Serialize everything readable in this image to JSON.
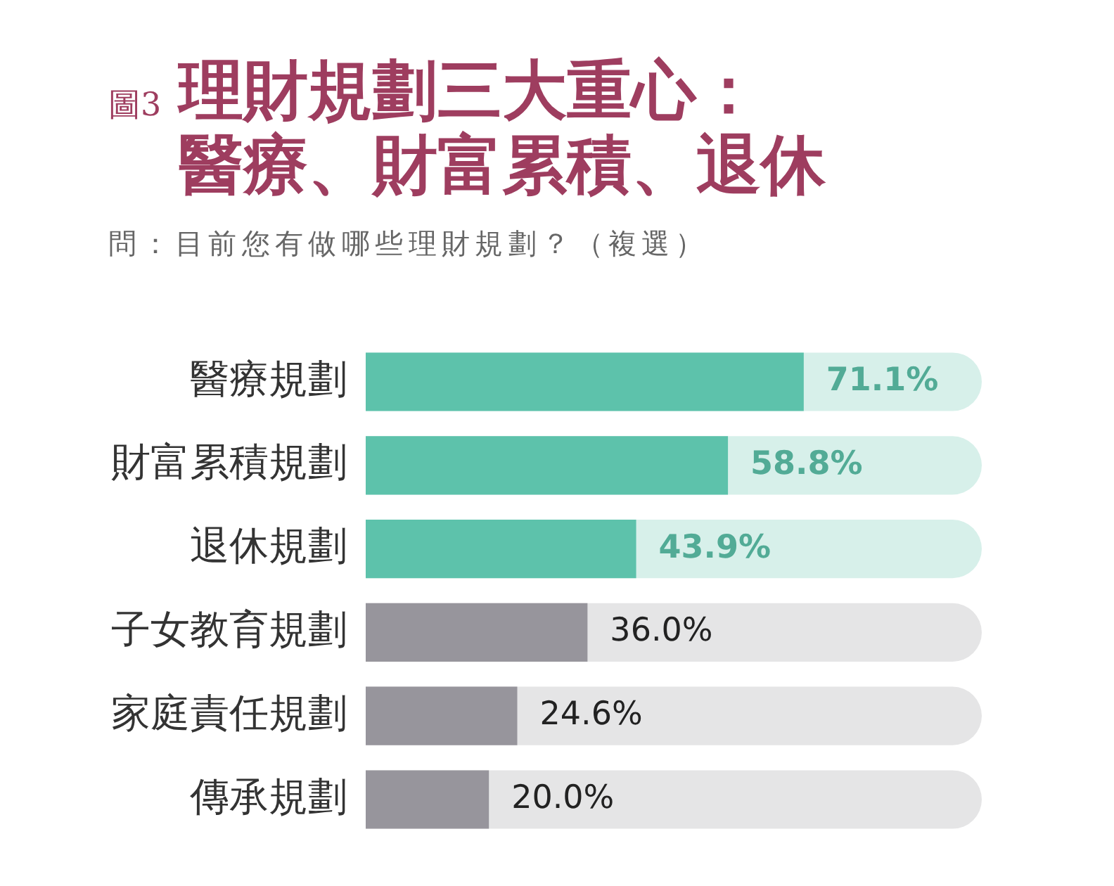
{
  "chart_data": {
    "type": "bar",
    "orientation": "horizontal",
    "title": "圖3 理財規劃三大重心：醫療、財富累積、退休",
    "subtitle": "問：目前您有做哪些理財規劃？（複選）",
    "categories": [
      "醫療規劃",
      "財富累積規劃",
      "退休規劃",
      "子女教育規劃",
      "家庭責任規劃",
      "傳承規劃"
    ],
    "values": [
      71.1,
      58.8,
      43.9,
      36.0,
      24.6,
      20.0
    ],
    "colors": [
      "#5dc2ab",
      "#5dc2ab",
      "#5dc2ab",
      "#97959c",
      "#97959c",
      "#97959c"
    ],
    "value_labels": [
      "71.1%",
      "58.8%",
      "43.9%",
      "36.0%",
      "24.6%",
      "20.0%"
    ],
    "xlim": [
      0,
      100
    ],
    "tick_labels": "y",
    "grid": false,
    "legend": false
  }
}
